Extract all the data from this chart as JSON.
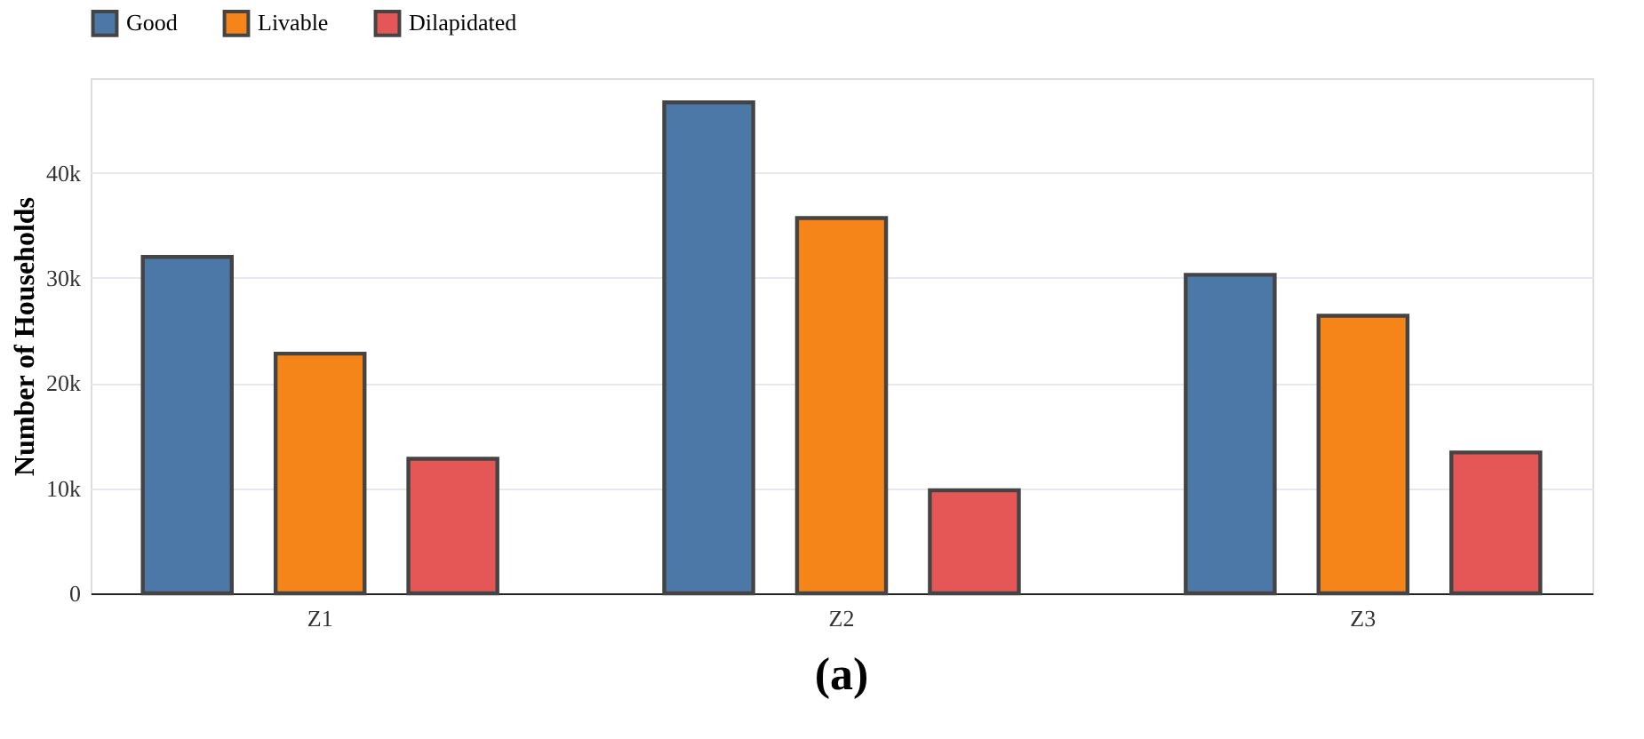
{
  "chart_data": {
    "type": "bar",
    "ylabel": "Number of Households",
    "categories": [
      "Z1",
      "Z2",
      "Z3"
    ],
    "series": [
      {
        "name": "Good",
        "color": "#4c78a8",
        "values": [
          32000,
          46700,
          30300
        ]
      },
      {
        "name": "Livable",
        "color": "#f58518",
        "values": [
          22800,
          35700,
          26400
        ]
      },
      {
        "name": "Dilapidated",
        "color": "#e45756",
        "values": [
          12800,
          9800,
          13400
        ]
      }
    ],
    "ylim": [
      0,
      49000
    ],
    "yticks": [
      0,
      {
        "value": 10000,
        "label": "10k"
      },
      {
        "value": 20000,
        "label": "20k"
      },
      {
        "value": 30000,
        "label": "30k"
      },
      {
        "value": 40000,
        "label": "40k"
      }
    ],
    "grid": "y",
    "legend": "top left",
    "annotations": [
      "(a)"
    ]
  }
}
